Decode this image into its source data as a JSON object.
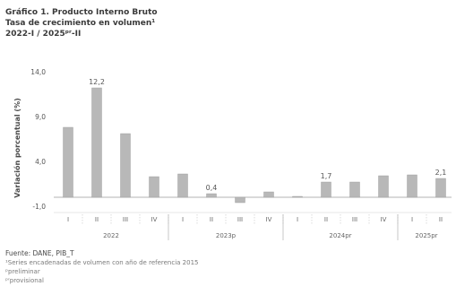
{
  "header": {
    "line1": "Gráfico 1. Producto Interno Bruto",
    "line2": "Tasa de crecimiento en volumen¹",
    "line3": "2022-I / 2025ᵖʳ-II"
  },
  "footer": {
    "source": "Fuente: DANE, PIB_T",
    "note1": "¹Series encadenadas de volumen con año de referencia 2015",
    "note2": "ᵖpreliminar",
    "note3": "ᵖʳprovisional"
  },
  "chart_data": {
    "type": "bar",
    "ylabel": "Variación porcentual (%)",
    "ylim": [
      -1.0,
      14.0
    ],
    "yticks": [
      "14,0",
      "9,0",
      "4,0",
      "-1,0"
    ],
    "ytick_values": [
      14.0,
      9.0,
      4.0,
      -1.0
    ],
    "categories": [
      "I",
      "II",
      "III",
      "IV",
      "I",
      "II",
      "III",
      "IV",
      "I",
      "II",
      "III",
      "IV",
      "I",
      "II"
    ],
    "groups": [
      {
        "label": "2022",
        "count": 4
      },
      {
        "label": "2023p",
        "count": 4
      },
      {
        "label": "2024pr",
        "count": 4
      },
      {
        "label": "2025pr",
        "count": 2
      }
    ],
    "values": [
      7.8,
      12.2,
      7.1,
      2.3,
      2.6,
      0.4,
      -0.6,
      0.6,
      0.1,
      1.7,
      1.7,
      2.4,
      2.5,
      2.1
    ],
    "data_labels": [
      "",
      "12,2",
      "",
      "",
      "",
      "0,4",
      "",
      "",
      "",
      "1,7",
      "",
      "",
      "",
      "2,1"
    ],
    "bar_color": "#b8b8b8",
    "grid": false
  }
}
